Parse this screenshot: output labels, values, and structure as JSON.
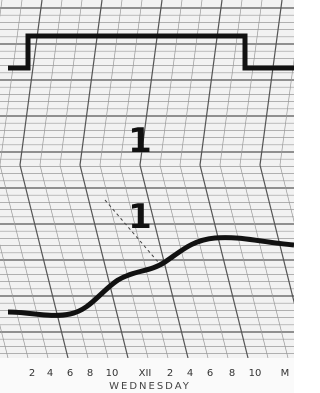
{
  "annotations": {
    "upper": "1",
    "lower": "1"
  },
  "time_axis": {
    "labels": [
      "2",
      "4",
      "6",
      "8",
      "10",
      "XII",
      "2",
      "4",
      "6",
      "8",
      "10",
      "M"
    ],
    "day": "WEDNESDAY"
  }
}
